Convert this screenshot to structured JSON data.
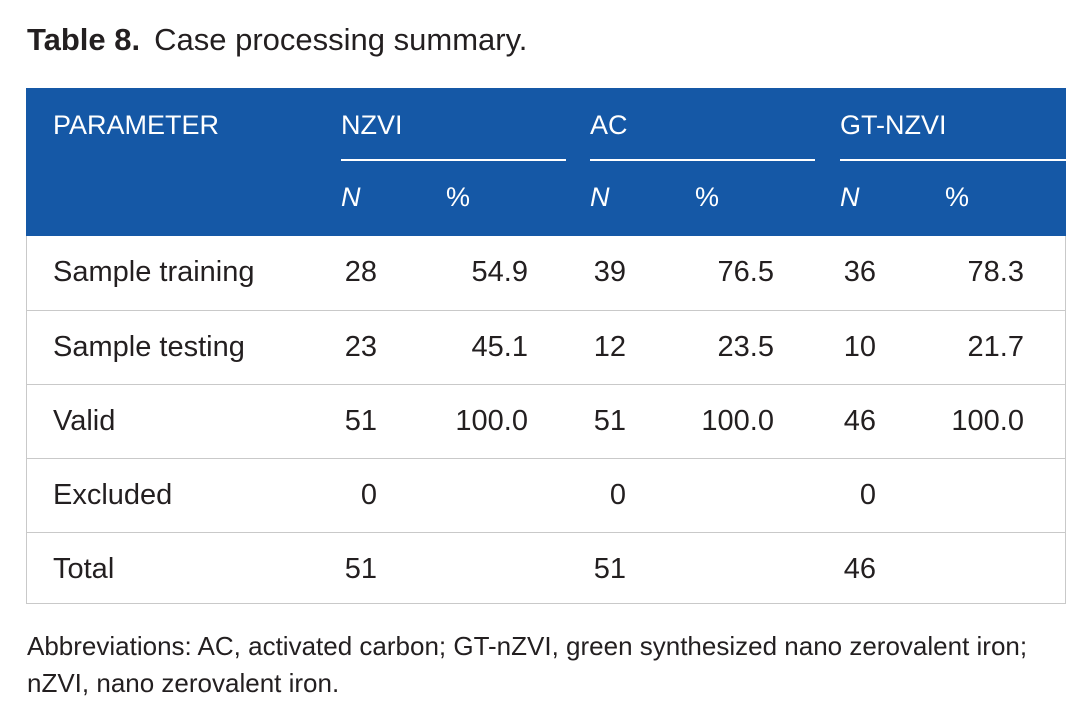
{
  "caption": {
    "label": "Table 8.",
    "title": "Case processing summary."
  },
  "header": {
    "parameter": "PARAMETER",
    "groups": [
      "NZVI",
      "AC",
      "GT-NZVI"
    ],
    "subheaders": [
      "N",
      "%",
      "N",
      "%",
      "N",
      "%"
    ]
  },
  "rows": [
    {
      "label": "Sample training",
      "values": [
        "28",
        "54.9",
        "39",
        "76.5",
        "36",
        "78.3"
      ]
    },
    {
      "label": "Sample testing",
      "values": [
        "23",
        "45.1",
        "12",
        "23.5",
        "10",
        "21.7"
      ]
    },
    {
      "label": "Valid",
      "values": [
        "51",
        "100.0",
        "51",
        "100.0",
        "46",
        "100.0"
      ]
    },
    {
      "label": "Excluded",
      "values": [
        "0",
        "",
        "0",
        "",
        "0",
        ""
      ]
    },
    {
      "label": "Total",
      "values": [
        "51",
        "",
        "51",
        "",
        "46",
        ""
      ]
    }
  ],
  "footnote": "Abbreviations: AC, activated carbon; GT-nZVI, green synthesized nano zerovalent iron; nZVI, nano zerovalent iron."
}
